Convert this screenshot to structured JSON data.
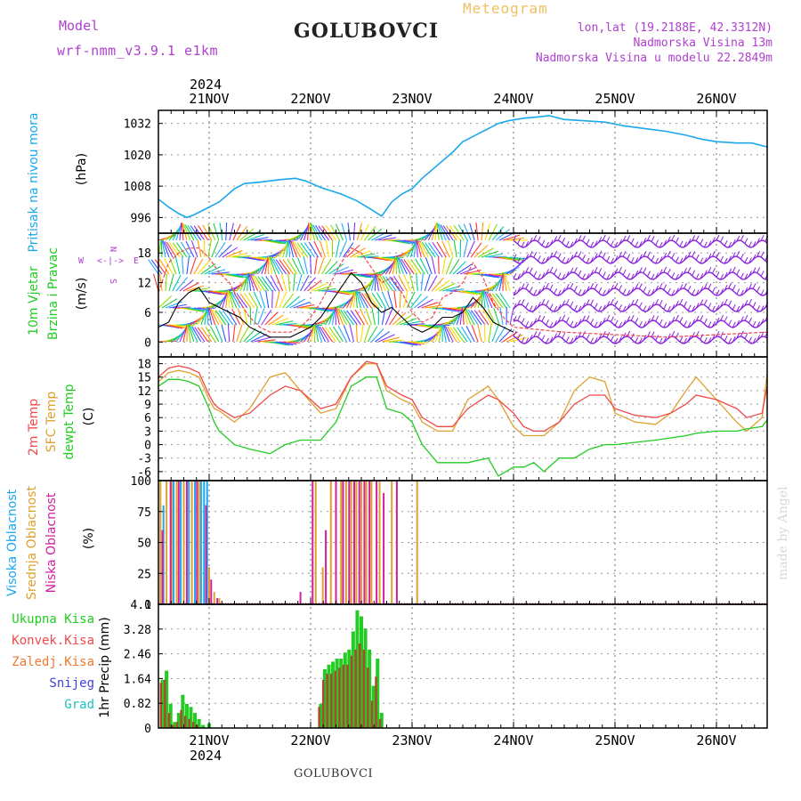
{
  "header": {
    "model_label": "Model",
    "model_name": "wrf-nmm_v3.9.1 e1km",
    "title": "GOLUBOVCI",
    "meteogram_label": "Meteogram",
    "lonlat": "lon,lat (19.2188E, 42.3312N)",
    "elevation": "Nadmorska Visina 13m",
    "model_elevation": "Nadmorska Visina u modelu 22.2849m",
    "watermark": "made by Angel",
    "footer": "GOLUBOVCI"
  },
  "time_axis": {
    "year": "2024",
    "day_labels": [
      "21NOV",
      "22NOV",
      "23NOV",
      "24NOV",
      "25NOV",
      "26NOV"
    ],
    "day_positions": [
      1,
      2,
      3,
      4,
      5,
      6
    ],
    "range_days": [
      0.5,
      6.5
    ]
  },
  "colors": {
    "pressure": "#1aa7ec",
    "temp2m": "#f04848",
    "sfc": "#e0a030",
    "dewpt": "#22cc22",
    "visoka": "#1aa7ec",
    "srednja": "#e0a030",
    "niska": "#d020a0",
    "total_precip": "#22cc22",
    "conv_precip": "#b04830",
    "wind_gust": "#f04848",
    "wind_speed": "#000000"
  },
  "panel_labels": {
    "pressure": [
      "Pritisak na nivou mora"
    ],
    "pressure_unit": "(hPa)",
    "wind": [
      "10m Vjetar",
      "Brzina i Pravac"
    ],
    "wind_unit": "(m/s)",
    "wind_compass": [
      "N",
      "<-|->",
      "W",
      "E",
      "S"
    ],
    "temp": [
      "2m Temp",
      "SFC Temp",
      "dewpt Temp"
    ],
    "temp_unit": "(C)",
    "cloud": [
      "Visoka Oblacnost",
      "Srednja Oblacnost",
      "Niska Oblacnost"
    ],
    "cloud_unit": "(%)",
    "precip_legend": [
      "Ukupna Kisa",
      "Konvek.Kisa",
      "Zaledj.Kisa",
      "Snijeg",
      "Grad"
    ],
    "precip_unit": "1hr Precip (mm)"
  },
  "chart_data": [
    {
      "type": "line",
      "title": "",
      "ylabel": "Pritisak na nivou mora (hPa)",
      "ylim": [
        990,
        1037
      ],
      "yticks": [
        996,
        1008,
        1020,
        1032
      ],
      "grid": true,
      "series": [
        {
          "name": "Pritisak na nivou mora",
          "x": [
            0.5,
            0.6,
            0.7,
            0.78,
            0.85,
            0.95,
            1.1,
            1.25,
            1.35,
            1.5,
            1.7,
            1.85,
            1.95,
            2.1,
            2.3,
            2.45,
            2.6,
            2.7,
            2.8,
            2.9,
            3.0,
            3.1,
            3.25,
            3.4,
            3.5,
            3.55,
            3.65,
            3.75,
            3.85,
            3.95,
            4.1,
            4.25,
            4.35,
            4.5,
            4.7,
            4.9,
            5.1,
            5.3,
            5.5,
            5.7,
            5.85,
            6.0,
            6.2,
            6.35,
            6.5
          ],
          "values": [
            1003,
            1000,
            997.5,
            996,
            997,
            999,
            1002,
            1007,
            1009,
            1009.5,
            1010.5,
            1011,
            1010,
            1007.5,
            1005,
            1002.5,
            999,
            996.5,
            1002,
            1005,
            1007,
            1011,
            1016,
            1021,
            1025,
            1026,
            1028,
            1030,
            1032,
            1033,
            1034,
            1034.5,
            1035,
            1033.5,
            1033,
            1032.5,
            1031,
            1030,
            1029,
            1027.5,
            1026,
            1025,
            1024.5,
            1024.5,
            1023
          ]
        }
      ]
    },
    {
      "type": "line",
      "title": "",
      "ylabel": "10m Vjetar Brzina i Pravac (m/s)",
      "ylim": [
        -3,
        22
      ],
      "yticks": [
        0,
        6,
        12,
        18
      ],
      "grid": true,
      "series": [
        {
          "name": "",
          "x": [
            0.5,
            0.6,
            0.7,
            0.8,
            0.9,
            1.0,
            1.1,
            1.2,
            1.3,
            1.4,
            1.5,
            1.6,
            1.7,
            1.8,
            1.9,
            2.0,
            2.1,
            2.2,
            2.3,
            2.4,
            2.5,
            2.6,
            2.7,
            2.8,
            2.9,
            3.0,
            3.1,
            3.2,
            3.3,
            3.4,
            3.5,
            3.6,
            3.7,
            3.8,
            3.9,
            4.0
          ],
          "values": [
            3,
            4,
            8,
            10,
            11,
            8,
            7,
            6,
            5,
            3,
            2,
            1,
            1,
            1,
            2,
            3,
            5,
            8,
            11,
            14,
            12,
            8,
            6,
            7,
            5,
            3,
            2,
            3,
            5,
            5,
            6,
            9,
            7,
            4,
            3,
            2
          ]
        },
        {
          "name": "",
          "x": [
            0.5,
            0.6,
            0.7,
            0.8,
            0.9,
            1.0,
            1.1,
            1.2,
            1.3,
            1.4,
            1.5,
            1.6,
            1.7,
            1.8,
            1.9,
            2.0,
            2.1,
            2.2,
            2.3,
            2.4,
            2.5,
            2.6,
            2.7,
            2.8,
            2.9,
            3.0,
            3.1,
            3.2,
            3.3,
            3.4,
            3.5,
            3.6,
            3.7,
            3.8,
            3.9,
            4.0,
            4.5,
            5.0,
            5.5,
            6.0,
            6.5
          ],
          "values": [
            10,
            16,
            18,
            19,
            19,
            17,
            14,
            12,
            8,
            5,
            3,
            2,
            2,
            2,
            3,
            5,
            8,
            12,
            16,
            19,
            18,
            15,
            12,
            13,
            10,
            6,
            4,
            5,
            9,
            10,
            12,
            16,
            13,
            8,
            5,
            3,
            2,
            1.5,
            1,
            1.5,
            2
          ]
        }
      ]
    },
    {
      "type": "line",
      "title": "",
      "ylabel": "Temp (C)",
      "ylim": [
        -8,
        19.5
      ],
      "yticks": [
        -6,
        -3,
        0,
        3,
        6,
        9,
        12,
        15,
        18
      ],
      "grid": true,
      "series": [
        {
          "name": "2m Temp",
          "x": [
            0.5,
            0.6,
            0.7,
            0.8,
            0.9,
            1.0,
            1.05,
            1.1,
            1.25,
            1.4,
            1.6,
            1.75,
            1.9,
            2.1,
            2.25,
            2.4,
            2.55,
            2.65,
            2.75,
            2.9,
            3.0,
            3.1,
            3.25,
            3.4,
            3.55,
            3.75,
            3.85,
            4.0,
            4.1,
            4.2,
            4.3,
            4.45,
            4.6,
            4.75,
            4.9,
            5.0,
            5.2,
            5.4,
            5.55,
            5.7,
            5.8,
            6.0,
            6.2,
            6.3,
            6.45,
            6.5
          ],
          "values": [
            15,
            17,
            17.5,
            17,
            16,
            11,
            9,
            8,
            6,
            7,
            11,
            13,
            12,
            8,
            9,
            15,
            18.5,
            18,
            13,
            11,
            10,
            6,
            4,
            4,
            8,
            11,
            10,
            7,
            4,
            3,
            3,
            5,
            9,
            11,
            11,
            8,
            6.5,
            6,
            7,
            9,
            11,
            10,
            8,
            6,
            7,
            13
          ]
        },
        {
          "name": "SFC Temp",
          "x": [
            0.5,
            0.6,
            0.7,
            0.8,
            0.9,
            1.0,
            1.05,
            1.1,
            1.25,
            1.4,
            1.6,
            1.75,
            1.9,
            2.1,
            2.25,
            2.4,
            2.55,
            2.65,
            2.75,
            2.9,
            3.0,
            3.1,
            3.25,
            3.4,
            3.55,
            3.75,
            3.85,
            4.0,
            4.1,
            4.2,
            4.3,
            4.45,
            4.6,
            4.75,
            4.9,
            5.0,
            5.2,
            5.4,
            5.55,
            5.7,
            5.8,
            6.0,
            6.2,
            6.3,
            6.45,
            6.5
          ],
          "values": [
            14,
            16,
            16.5,
            16,
            15,
            10,
            8,
            7.5,
            5,
            8,
            15,
            16,
            12,
            7,
            8,
            15,
            18,
            18,
            12,
            10,
            9,
            5,
            3,
            3,
            10,
            13,
            10,
            4,
            2,
            2,
            2,
            5,
            12,
            15,
            14,
            7,
            5,
            4.5,
            7,
            12,
            15,
            10,
            5,
            3,
            6,
            16
          ]
        },
        {
          "name": "dewpt Temp",
          "x": [
            0.5,
            0.6,
            0.7,
            0.8,
            0.9,
            1.0,
            1.05,
            1.1,
            1.25,
            1.4,
            1.6,
            1.75,
            1.9,
            2.1,
            2.25,
            2.4,
            2.55,
            2.65,
            2.75,
            2.9,
            3.0,
            3.1,
            3.25,
            3.4,
            3.55,
            3.75,
            3.85,
            4.0,
            4.1,
            4.2,
            4.3,
            4.45,
            4.6,
            4.75,
            4.9,
            5.0,
            5.2,
            5.4,
            5.55,
            5.7,
            5.8,
            6.0,
            6.2,
            6.3,
            6.45,
            6.5
          ],
          "values": [
            13,
            14.5,
            14.5,
            14,
            13,
            8,
            5,
            3,
            0,
            -1,
            -2,
            0,
            1,
            1,
            5,
            13,
            15,
            15,
            8,
            7,
            5,
            0,
            -4,
            -4,
            -4,
            -3,
            -7,
            -5,
            -5,
            -4,
            -6,
            -3,
            -3,
            -1,
            0,
            0,
            0.5,
            1,
            1.5,
            2,
            2.5,
            3,
            3,
            3.5,
            4,
            5.5
          ]
        }
      ]
    },
    {
      "type": "bar",
      "title": "",
      "ylabel": "Oblacnost (%)",
      "ylim": [
        0,
        100
      ],
      "yticks": [
        0,
        25,
        50,
        75,
        100
      ],
      "grid": true,
      "series": [
        {
          "name": "Visoka Oblacnost",
          "x": [
            0.55,
            0.65,
            0.72,
            0.8,
            0.86,
            0.92,
            0.95,
            0.98
          ],
          "values": [
            80,
            100,
            100,
            100,
            100,
            100,
            100,
            100
          ]
        },
        {
          "name": "Srednja Oblacnost",
          "x": [
            0.52,
            0.58,
            0.63,
            0.68,
            0.75,
            0.83,
            0.9,
            1.0,
            1.05,
            1.1,
            2.05,
            2.12,
            2.2,
            2.3,
            2.35,
            2.4,
            2.45,
            2.5,
            2.55,
            2.6,
            2.68,
            2.8,
            3.05
          ],
          "values": [
            100,
            100,
            100,
            100,
            100,
            100,
            100,
            30,
            10,
            5,
            100,
            30,
            100,
            100,
            100,
            100,
            100,
            100,
            100,
            100,
            100,
            100,
            100
          ]
        },
        {
          "name": "Niska Oblacnost",
          "x": [
            0.54,
            0.62,
            0.7,
            0.78,
            0.88,
            0.97,
            1.02,
            1.08,
            1.9,
            2.02,
            2.15,
            2.25,
            2.32,
            2.38,
            2.43,
            2.48,
            2.53,
            2.58,
            2.65,
            2.72,
            2.85
          ],
          "values": [
            60,
            100,
            100,
            100,
            100,
            80,
            20,
            5,
            10,
            100,
            60,
            100,
            100,
            100,
            100,
            100,
            100,
            100,
            100,
            90,
            100
          ]
        }
      ]
    },
    {
      "type": "bar",
      "title": "",
      "ylabel": "1hr Precip (mm)",
      "ylim": [
        0,
        4.1
      ],
      "yticks": [
        0,
        0.82,
        1.64,
        2.46,
        3.28,
        4.1
      ],
      "grid": true,
      "series": [
        {
          "name": "Ukupna Kisa",
          "x": [
            0.54,
            0.58,
            0.62,
            0.66,
            0.7,
            0.74,
            0.78,
            0.82,
            0.86,
            0.9,
            0.94,
            1.0,
            2.1,
            2.14,
            2.18,
            2.22,
            2.26,
            2.3,
            2.34,
            2.38,
            2.42,
            2.46,
            2.5,
            2.54,
            2.58,
            2.62,
            2.66,
            2.7
          ],
          "values": [
            1.6,
            1.9,
            0.8,
            0.2,
            0.5,
            1.1,
            0.8,
            0.7,
            0.5,
            0.3,
            0.1,
            0.15,
            0.8,
            1.95,
            2.1,
            2.2,
            2.3,
            2.3,
            2.5,
            2.6,
            3.2,
            3.9,
            3.7,
            3.3,
            2.6,
            1.4,
            2.3,
            0.5
          ]
        },
        {
          "name": "Konvek.Kisa",
          "x": [
            0.54,
            0.58,
            0.62,
            0.66,
            0.7,
            0.74,
            0.78,
            0.82,
            0.86,
            0.9,
            2.1,
            2.14,
            2.18,
            2.22,
            2.26,
            2.3,
            2.34,
            2.38,
            2.42,
            2.46,
            2.5,
            2.54,
            2.58,
            2.62,
            2.66,
            2.7
          ],
          "values": [
            1.5,
            1.6,
            0.5,
            0.1,
            0.2,
            0.6,
            0.4,
            0.3,
            0.2,
            0.1,
            0.7,
            1.6,
            1.8,
            1.8,
            1.9,
            2.0,
            2.1,
            2.1,
            2.4,
            2.6,
            2.8,
            2.6,
            2.0,
            0.9,
            1.7,
            0.3
          ]
        },
        {
          "name": "Zaledj.Kisa",
          "x": [],
          "values": []
        },
        {
          "name": "Snijeg",
          "x": [],
          "values": []
        },
        {
          "name": "Grad",
          "x": [],
          "values": []
        }
      ]
    }
  ]
}
